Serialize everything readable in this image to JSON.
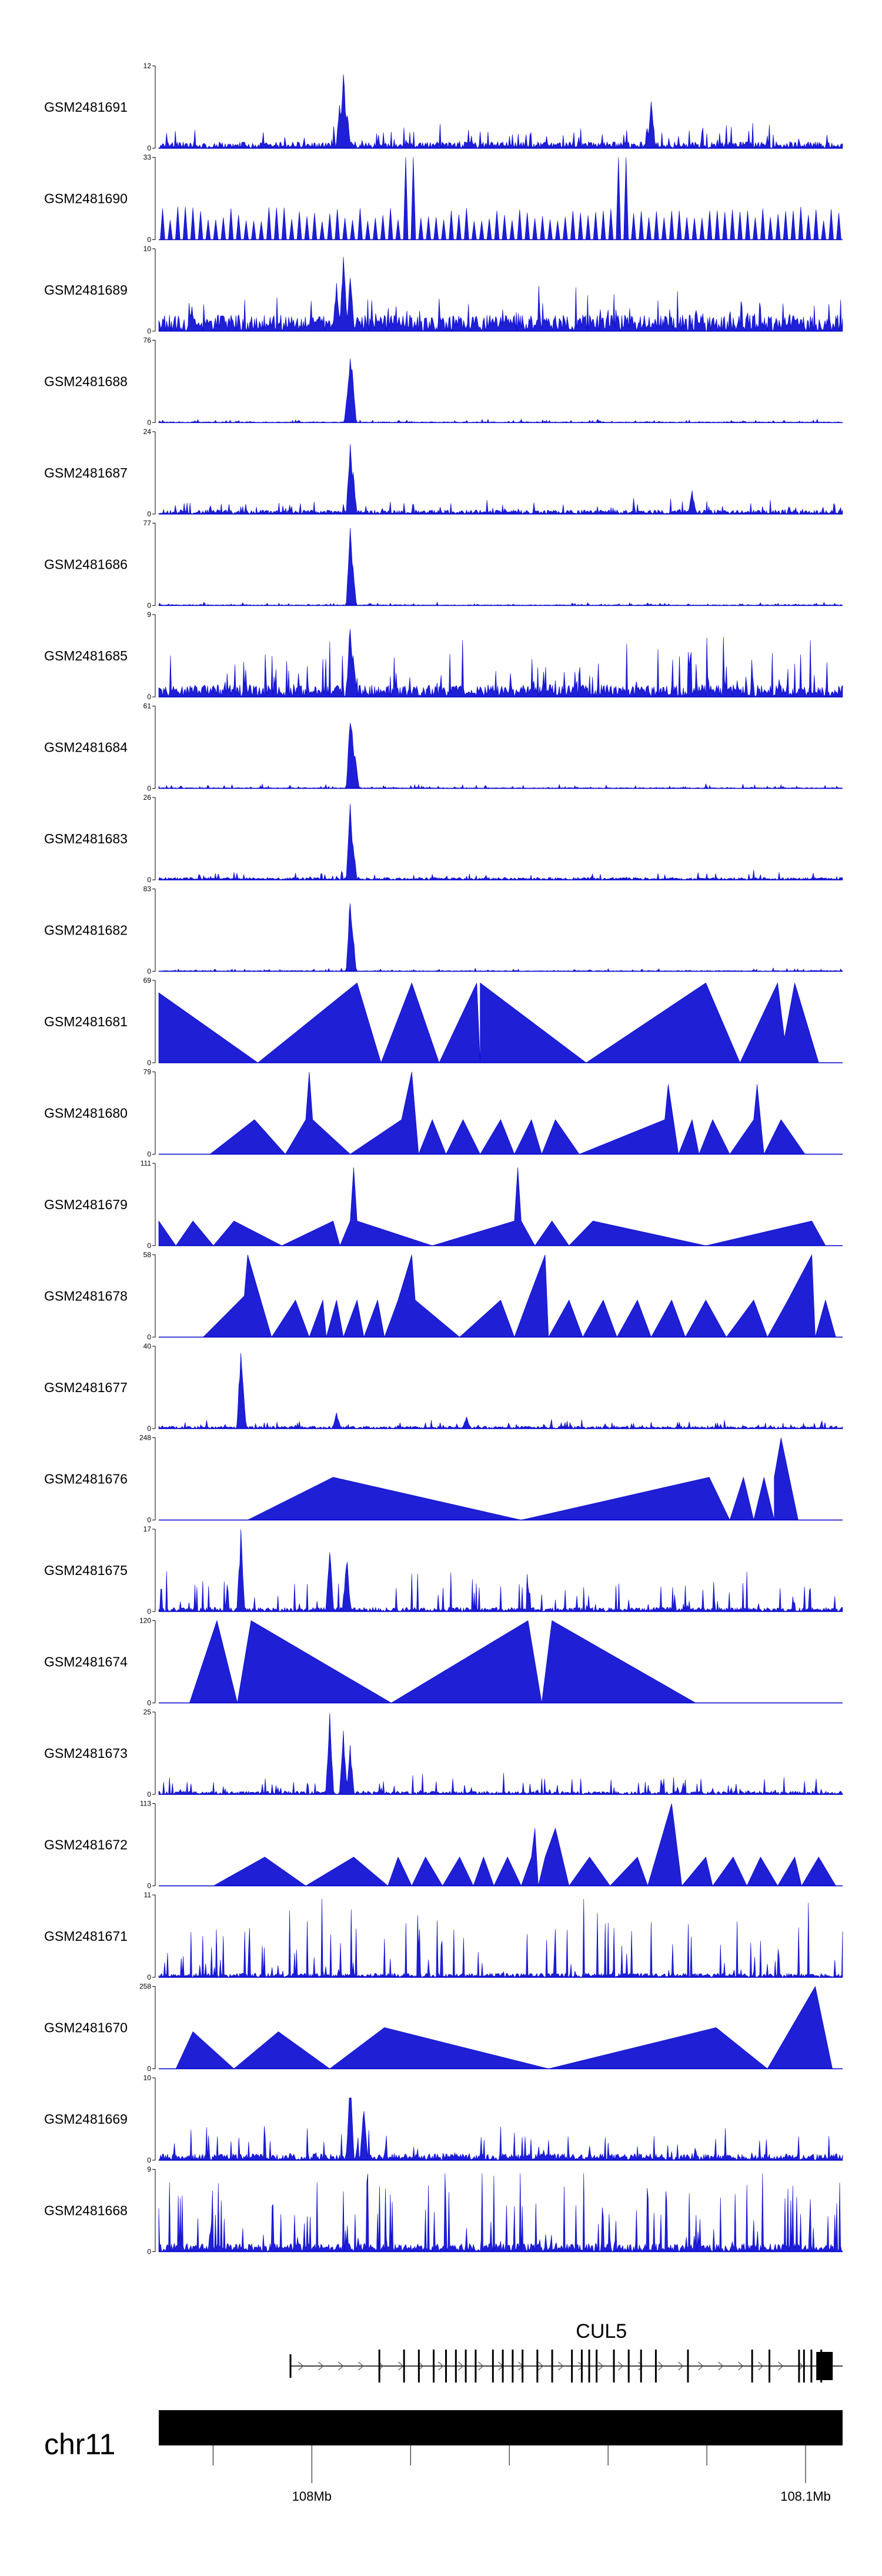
{
  "chart_data": {
    "type": "area",
    "title": "",
    "chromosome": "chr11",
    "gene": {
      "name": "CUL5",
      "start_mb": 107.9955,
      "end_mb": 108.1075,
      "exons_mb": [
        107.9955,
        108.0135,
        108.0185,
        108.0215,
        108.0245,
        108.027,
        108.029,
        108.031,
        108.033,
        108.0365,
        108.0385,
        108.0405,
        108.0425,
        108.0455,
        108.0485,
        108.0525,
        108.0545,
        108.056,
        108.0575,
        108.061,
        108.064,
        108.0665,
        108.0695,
        108.076,
        108.089,
        108.0925,
        108.0985,
        108.0995,
        108.101,
        108.103,
        108.1055
      ]
    },
    "x_range_mb": [
      107.969,
      108.1075
    ],
    "ticks": [
      {
        "value_mb": 107.98,
        "label": ""
      },
      {
        "value_mb": 108.0,
        "label": "108Mb"
      },
      {
        "value_mb": 108.02,
        "label": ""
      },
      {
        "value_mb": 108.04,
        "label": ""
      },
      {
        "value_mb": 108.06,
        "label": ""
      },
      {
        "value_mb": 108.08,
        "label": ""
      },
      {
        "value_mb": 108.1,
        "label": "108.1Mb"
      }
    ],
    "tracks": [
      {
        "name": "GSM2481691",
        "ymax": "12",
        "ymin": "0",
        "style": "noisy",
        "baseline": 0.08,
        "noise": 0.22,
        "peaks": [
          [
            0.27,
            1.0
          ],
          [
            0.265,
            0.6
          ],
          [
            0.275,
            0.5
          ],
          [
            0.72,
            0.6
          ]
        ],
        "seed": 11
      },
      {
        "name": "GSM2481690",
        "ymax": "33",
        "ymin": "0",
        "style": "triangles",
        "baseline": 0,
        "noise": 0,
        "peaks": [
          [
            0.36,
            1.0
          ],
          [
            0.67,
            1.0
          ],
          [
            0.03,
            0.4
          ],
          [
            0.11,
            0.3
          ],
          [
            0.2,
            0.25
          ],
          [
            0.5,
            0.3
          ],
          [
            0.83,
            0.3
          ],
          [
            0.93,
            0.35
          ]
        ],
        "seed": 12
      },
      {
        "name": "GSM2481689",
        "ymax": "10",
        "ymin": "0",
        "style": "noisy",
        "baseline": 0.2,
        "noise": 0.4,
        "peaks": [
          [
            0.27,
            1.0
          ],
          [
            0.28,
            0.7
          ],
          [
            0.26,
            0.6
          ]
        ],
        "seed": 13
      },
      {
        "name": "GSM2481688",
        "ymax": "76",
        "ymin": "0",
        "style": "noisy",
        "baseline": 0.01,
        "noise": 0.03,
        "peaks": [
          [
            0.28,
            1.0
          ],
          [
            0.283,
            0.7
          ],
          [
            0.277,
            0.5
          ]
        ],
        "seed": 14
      },
      {
        "name": "GSM2481687",
        "ymax": "24",
        "ymin": "0",
        "style": "noisy",
        "baseline": 0.05,
        "noise": 0.14,
        "peaks": [
          [
            0.28,
            1.0
          ],
          [
            0.284,
            0.55
          ],
          [
            0.78,
            0.3
          ]
        ],
        "seed": 15
      },
      {
        "name": "GSM2481686",
        "ymax": "77",
        "ymin": "0",
        "style": "noisy",
        "baseline": 0.01,
        "noise": 0.03,
        "peaks": [
          [
            0.28,
            1.0
          ],
          [
            0.283,
            0.65
          ]
        ],
        "seed": 16
      },
      {
        "name": "GSM2481685",
        "ymax": "9",
        "ymin": "0",
        "style": "noisy",
        "baseline": 0.15,
        "noise": 0.55,
        "peaks": [
          [
            0.28,
            1.0
          ],
          [
            0.284,
            0.6
          ]
        ],
        "seed": 17
      },
      {
        "name": "GSM2481684",
        "ymax": "61",
        "ymin": "0",
        "style": "noisy",
        "baseline": 0.01,
        "noise": 0.04,
        "peaks": [
          [
            0.28,
            1.0
          ],
          [
            0.283,
            0.7
          ],
          [
            0.287,
            0.5
          ]
        ],
        "seed": 18
      },
      {
        "name": "GSM2481683",
        "ymax": "26",
        "ymin": "0",
        "style": "noisy",
        "baseline": 0.03,
        "noise": 0.09,
        "peaks": [
          [
            0.28,
            1.0
          ],
          [
            0.284,
            0.5
          ]
        ],
        "seed": 19
      },
      {
        "name": "GSM2481682",
        "ymax": "83",
        "ymin": "0",
        "style": "noisy",
        "baseline": 0.01,
        "noise": 0.03,
        "peaks": [
          [
            0.28,
            1.0
          ],
          [
            0.283,
            0.6
          ]
        ],
        "seed": 20
      },
      {
        "name": "GSM2481681",
        "ymax": "69",
        "ymin": "0",
        "style": "polygon",
        "points": [
          [
            0.0,
            0.85
          ],
          [
            0.145,
            0.0
          ],
          [
            0.29,
            0.97
          ],
          [
            0.325,
            0.0
          ],
          [
            0.37,
            0.97
          ],
          [
            0.41,
            0.0
          ],
          [
            0.465,
            0.97
          ],
          [
            0.47,
            0.0
          ],
          [
            0.47,
            0.97
          ],
          [
            0.625,
            0.0
          ],
          [
            0.8,
            0.97
          ],
          [
            0.85,
            0.0
          ],
          [
            0.905,
            0.97
          ],
          [
            0.915,
            0.3
          ],
          [
            0.93,
            0.97
          ],
          [
            0.965,
            0.0
          ]
        ],
        "seed": 21
      },
      {
        "name": "GSM2481680",
        "ymax": "79",
        "ymin": "0",
        "style": "polygon",
        "points": [
          [
            0.075,
            0.0
          ],
          [
            0.14,
            0.42
          ],
          [
            0.185,
            0.0
          ],
          [
            0.215,
            0.42
          ],
          [
            0.22,
            1.0
          ],
          [
            0.225,
            0.42
          ],
          [
            0.28,
            0.0
          ],
          [
            0.355,
            0.42
          ],
          [
            0.37,
            1.0
          ],
          [
            0.38,
            0.0
          ],
          [
            0.4,
            0.42
          ],
          [
            0.42,
            0.0
          ],
          [
            0.445,
            0.42
          ],
          [
            0.47,
            0.0
          ],
          [
            0.5,
            0.42
          ],
          [
            0.52,
            0.0
          ],
          [
            0.545,
            0.42
          ],
          [
            0.56,
            0.0
          ],
          [
            0.58,
            0.42
          ],
          [
            0.615,
            0.0
          ],
          [
            0.74,
            0.42
          ],
          [
            0.745,
            0.85
          ],
          [
            0.76,
            0.0
          ],
          [
            0.78,
            0.42
          ],
          [
            0.79,
            0.0
          ],
          [
            0.81,
            0.42
          ],
          [
            0.835,
            0.0
          ],
          [
            0.87,
            0.42
          ],
          [
            0.875,
            0.85
          ],
          [
            0.885,
            0.0
          ],
          [
            0.91,
            0.42
          ],
          [
            0.945,
            0.0
          ]
        ],
        "seed": 22
      },
      {
        "name": "GSM2481679",
        "ymax": "111",
        "ymin": "0",
        "style": "polygon",
        "points": [
          [
            0.0,
            0.3
          ],
          [
            0.025,
            0.0
          ],
          [
            0.05,
            0.3
          ],
          [
            0.08,
            0.0
          ],
          [
            0.11,
            0.3
          ],
          [
            0.18,
            0.0
          ],
          [
            0.255,
            0.3
          ],
          [
            0.265,
            0.0
          ],
          [
            0.28,
            0.3
          ],
          [
            0.285,
            0.95
          ],
          [
            0.29,
            0.3
          ],
          [
            0.4,
            0.0
          ],
          [
            0.52,
            0.3
          ],
          [
            0.525,
            0.95
          ],
          [
            0.53,
            0.3
          ],
          [
            0.55,
            0.0
          ],
          [
            0.575,
            0.3
          ],
          [
            0.6,
            0.0
          ],
          [
            0.635,
            0.3
          ],
          [
            0.8,
            0.0
          ],
          [
            0.955,
            0.3
          ],
          [
            0.975,
            0.0
          ]
        ],
        "seed": 23
      },
      {
        "name": "GSM2481678",
        "ymax": "58",
        "ymin": "0",
        "style": "polygon",
        "points": [
          [
            0.065,
            0.0
          ],
          [
            0.125,
            0.5
          ],
          [
            0.13,
            1.0
          ],
          [
            0.165,
            0.0
          ],
          [
            0.2,
            0.45
          ],
          [
            0.22,
            0.0
          ],
          [
            0.24,
            0.45
          ],
          [
            0.245,
            0.0
          ],
          [
            0.26,
            0.45
          ],
          [
            0.27,
            0.0
          ],
          [
            0.29,
            0.45
          ],
          [
            0.3,
            0.0
          ],
          [
            0.32,
            0.45
          ],
          [
            0.33,
            0.0
          ],
          [
            0.35,
            0.45
          ],
          [
            0.37,
            1.0
          ],
          [
            0.375,
            0.45
          ],
          [
            0.44,
            0.0
          ],
          [
            0.5,
            0.45
          ],
          [
            0.52,
            0.0
          ],
          [
            0.54,
            0.45
          ],
          [
            0.565,
            1.0
          ],
          [
            0.57,
            0.0
          ],
          [
            0.6,
            0.45
          ],
          [
            0.62,
            0.0
          ],
          [
            0.65,
            0.45
          ],
          [
            0.67,
            0.0
          ],
          [
            0.7,
            0.45
          ],
          [
            0.72,
            0.0
          ],
          [
            0.75,
            0.45
          ],
          [
            0.77,
            0.0
          ],
          [
            0.8,
            0.45
          ],
          [
            0.83,
            0.0
          ],
          [
            0.87,
            0.45
          ],
          [
            0.89,
            0.0
          ],
          [
            0.92,
            0.45
          ],
          [
            0.955,
            1.0
          ],
          [
            0.96,
            0.0
          ],
          [
            0.975,
            0.45
          ],
          [
            0.99,
            0.0
          ]
        ],
        "seed": 24
      },
      {
        "name": "GSM2481677",
        "ymax": "40",
        "ymin": "0",
        "style": "noisy",
        "baseline": 0.03,
        "noise": 0.08,
        "peaks": [
          [
            0.12,
            1.0
          ],
          [
            0.122,
            0.7
          ],
          [
            0.26,
            0.2
          ],
          [
            0.45,
            0.15
          ]
        ],
        "seed": 25
      },
      {
        "name": "GSM2481676",
        "ymax": "248",
        "ymin": "0",
        "style": "polygon",
        "points": [
          [
            0.13,
            0.0
          ],
          [
            0.255,
            0.52
          ],
          [
            0.53,
            0.0
          ],
          [
            0.805,
            0.52
          ],
          [
            0.835,
            0.0
          ],
          [
            0.855,
            0.52
          ],
          [
            0.87,
            0.0
          ],
          [
            0.885,
            0.52
          ],
          [
            0.9,
            0.0
          ],
          [
            0.9,
            0.52
          ],
          [
            0.91,
            1.0
          ],
          [
            0.935,
            0.0
          ]
        ],
        "seed": 26
      },
      {
        "name": "GSM2481675",
        "ymax": "17",
        "ymin": "0",
        "style": "noisy",
        "baseline": 0.05,
        "noise": 0.35,
        "peaks": [
          [
            0.12,
            1.0
          ],
          [
            0.25,
            0.8
          ],
          [
            0.275,
            0.7
          ]
        ],
        "seed": 27
      },
      {
        "name": "GSM2481674",
        "ymax": "120",
        "ymin": "0",
        "style": "polygon",
        "points": [
          [
            0.045,
            0.0
          ],
          [
            0.085,
            1.0
          ],
          [
            0.115,
            0.0
          ],
          [
            0.135,
            1.0
          ],
          [
            0.34,
            0.0
          ],
          [
            0.54,
            1.0
          ],
          [
            0.56,
            0.0
          ],
          [
            0.575,
            1.0
          ],
          [
            0.785,
            0.0
          ]
        ],
        "seed": 28
      },
      {
        "name": "GSM2481673",
        "ymax": "25",
        "ymin": "0",
        "style": "noisy",
        "baseline": 0.04,
        "noise": 0.2,
        "peaks": [
          [
            0.25,
            1.0
          ],
          [
            0.27,
            0.8
          ],
          [
            0.28,
            0.6
          ]
        ],
        "seed": 29
      },
      {
        "name": "GSM2481672",
        "ymax": "113",
        "ymin": "0",
        "style": "polygon",
        "points": [
          [
            0.08,
            0.0
          ],
          [
            0.155,
            0.35
          ],
          [
            0.215,
            0.0
          ],
          [
            0.285,
            0.35
          ],
          [
            0.335,
            0.0
          ],
          [
            0.35,
            0.35
          ],
          [
            0.37,
            0.0
          ],
          [
            0.39,
            0.35
          ],
          [
            0.415,
            0.0
          ],
          [
            0.44,
            0.35
          ],
          [
            0.46,
            0.0
          ],
          [
            0.475,
            0.35
          ],
          [
            0.49,
            0.0
          ],
          [
            0.51,
            0.35
          ],
          [
            0.53,
            0.0
          ],
          [
            0.545,
            0.35
          ],
          [
            0.55,
            0.7
          ],
          [
            0.555,
            0.0
          ],
          [
            0.565,
            0.35
          ],
          [
            0.58,
            0.7
          ],
          [
            0.6,
            0.0
          ],
          [
            0.63,
            0.35
          ],
          [
            0.66,
            0.0
          ],
          [
            0.7,
            0.35
          ],
          [
            0.715,
            0.0
          ],
          [
            0.75,
            1.0
          ],
          [
            0.765,
            0.0
          ],
          [
            0.8,
            0.35
          ],
          [
            0.81,
            0.0
          ],
          [
            0.84,
            0.35
          ],
          [
            0.86,
            0.0
          ],
          [
            0.88,
            0.35
          ],
          [
            0.905,
            0.0
          ],
          [
            0.93,
            0.35
          ],
          [
            0.94,
            0.0
          ],
          [
            0.965,
            0.35
          ],
          [
            0.99,
            0.0
          ]
        ],
        "seed": 30
      },
      {
        "name": "GSM2481671",
        "ymax": "11",
        "ymin": "0",
        "style": "noisy",
        "baseline": 0.05,
        "noise": 0.7,
        "peaks": [],
        "seed": 31
      },
      {
        "name": "GSM2481670",
        "ymax": "258",
        "ymin": "0",
        "style": "polygon",
        "points": [
          [
            0.025,
            0.0
          ],
          [
            0.05,
            0.45
          ],
          [
            0.11,
            0.0
          ],
          [
            0.175,
            0.45
          ],
          [
            0.25,
            0.0
          ],
          [
            0.33,
            0.5
          ],
          [
            0.57,
            0.0
          ],
          [
            0.815,
            0.5
          ],
          [
            0.89,
            0.0
          ],
          [
            0.96,
            1.0
          ],
          [
            0.985,
            0.0
          ]
        ],
        "seed": 32
      },
      {
        "name": "GSM2481669",
        "ymax": "10",
        "ymin": "0",
        "style": "noisy",
        "baseline": 0.08,
        "noise": 0.3,
        "peaks": [
          [
            0.28,
            1.0
          ],
          [
            0.3,
            0.7
          ]
        ],
        "seed": 33
      },
      {
        "name": "GSM2481668",
        "ymax": "9",
        "ymin": "0",
        "style": "noisy",
        "baseline": 0.1,
        "noise": 0.85,
        "peaks": [],
        "seed": 34
      }
    ]
  }
}
